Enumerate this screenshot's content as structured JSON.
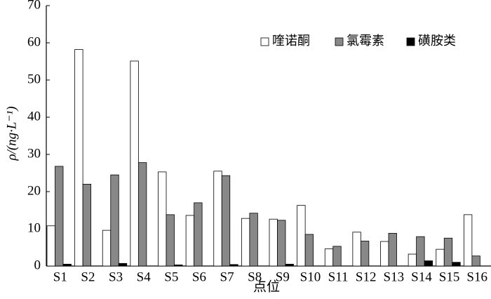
{
  "chart_data": {
    "type": "bar",
    "x_label": "点位",
    "y_label": "ρ/(ng·L⁻¹)",
    "categories": [
      "S1",
      "S2",
      "S3",
      "S4",
      "S5",
      "S6",
      "S7",
      "S8",
      "S9",
      "S10",
      "S11",
      "S12",
      "S13",
      "S14",
      "S15",
      "S16"
    ],
    "series": [
      {
        "name": "喹诺酮",
        "color": "#ffffff",
        "values": [
          10.8,
          58.2,
          9.6,
          55.1,
          25.3,
          13.6,
          25.5,
          12.8,
          12.6,
          16.3,
          4.6,
          9.1,
          6.6,
          3.2,
          4.5,
          13.8
        ]
      },
      {
        "name": "氯霉素",
        "color": "#888888",
        "values": [
          26.8,
          22,
          24.5,
          27.8,
          13.8,
          17,
          24.3,
          14.2,
          12.3,
          8.5,
          5.3,
          6.7,
          8.8,
          7.9,
          7.5,
          2.7
        ]
      },
      {
        "name": "磺胺类",
        "color": "#000000",
        "values": [
          0.5,
          0,
          0.7,
          0,
          0.3,
          0,
          0.4,
          0,
          0.5,
          0,
          0,
          0,
          0,
          1.4,
          1.0,
          0
        ]
      }
    ],
    "ylim": [
      0,
      70
    ],
    "yticks": [
      0,
      10,
      20,
      30,
      40,
      50,
      60,
      70
    ],
    "legend": "top-right"
  }
}
